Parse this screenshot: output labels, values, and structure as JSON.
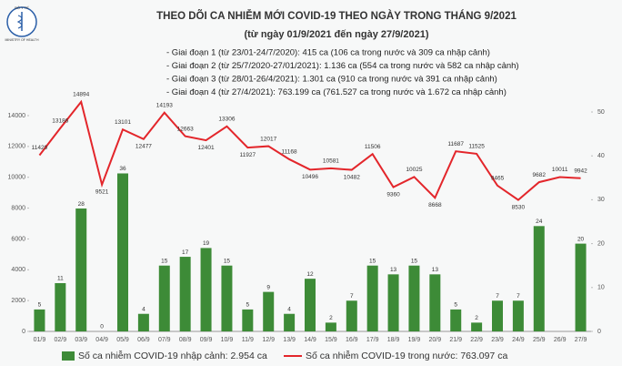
{
  "logo": {
    "top": "BỘ Y TẾ",
    "bottom": "MINISTRY OF HEALTH"
  },
  "chart_data": {
    "type": "bar-line",
    "title": "THEO DÕI CA NHIỄM MỚI COVID-19 THEO NGÀY TRONG THÁNG 9/2021",
    "subtitle": "(từ ngày 01/9/2021 đến ngày 27/9/2021)",
    "annotations": [
      "- Giai đoạn 1 (từ 23/01-24/7/2020): 415 ca (106 ca trong nước và 309 ca nhập cảnh)",
      "- Giai đoạn 2 (từ 25/7/2020-27/01/2021): 1.136 ca (554 ca trong nước và 582 ca nhập cảnh)",
      "- Giai đoạn 3 (từ 28/01-26/4/2021): 1.301 ca (910 ca trong nước và 391 ca nhập cảnh)",
      "- Giai đoạn 4 (từ 27/4/2021): 763.199 ca (761.527 ca trong nước và 1.672 ca nhập cảnh)"
    ],
    "categories": [
      "01/9",
      "02/9",
      "03/9",
      "04/9",
      "05/9",
      "06/9",
      "07/9",
      "08/9",
      "09/9",
      "10/9",
      "11/9",
      "12/9",
      "13/9",
      "14/9",
      "15/9",
      "16/9",
      "17/9",
      "18/9",
      "19/9",
      "20/9",
      "21/9",
      "22/9",
      "23/9",
      "24/9",
      "25/9",
      "26/9",
      "27/9"
    ],
    "series": [
      {
        "name": "Số ca nhiễm COVID-19 nhập cảnh: 2.954 ca",
        "type": "bar",
        "axis": "y2",
        "color": "#3d8b37",
        "values": [
          5,
          11,
          28,
          0,
          36,
          4,
          15,
          17,
          19,
          15,
          5,
          9,
          4,
          12,
          2,
          7,
          15,
          13,
          15,
          13,
          5,
          2,
          7,
          7,
          24,
          null,
          20
        ]
      },
      {
        "name": "Số ca nhiễm COVID-19 trong nước: 763.097 ca",
        "type": "line",
        "axis": "y",
        "color": "#e3262b",
        "values": [
          11429,
          13186,
          14894,
          9521,
          13101,
          12477,
          14193,
          12663,
          12401,
          13306,
          11927,
          12017,
          11168,
          10496,
          10581,
          10482,
          11506,
          9360,
          10025,
          8668,
          11687,
          11525,
          9465,
          8530,
          9682,
          10011,
          9942
        ]
      }
    ],
    "ylim": [
      0,
      14000
    ],
    "yticks": [
      0,
      2000,
      4000,
      6000,
      8000,
      10000,
      12000,
      14000
    ],
    "y2lim": [
      0,
      50
    ],
    "y2ticks": [
      0,
      10,
      20,
      30,
      40,
      50
    ],
    "grid": false
  }
}
